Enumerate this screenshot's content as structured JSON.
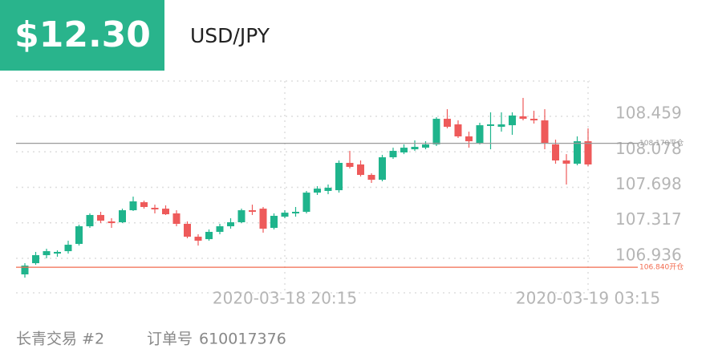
{
  "header": {
    "price": "$12.30",
    "symbol": "USD/JPY"
  },
  "footer": {
    "account": "长青交易 #2",
    "order_label": "订单号",
    "order_number": "610017376"
  },
  "chart_data": {
    "type": "candlestick",
    "categories": [
      null,
      null,
      null,
      null,
      null,
      null,
      null,
      null,
      null,
      null,
      null,
      null,
      null,
      null,
      null,
      null,
      null,
      null,
      null,
      null,
      null,
      null,
      null,
      null,
      "2020-03-18 20:15",
      null,
      null,
      null,
      null,
      null,
      null,
      null,
      null,
      null,
      null,
      null,
      null,
      null,
      null,
      null,
      null,
      null,
      null,
      null,
      null,
      null,
      null,
      null,
      null,
      null,
      null,
      null,
      "2020-03-19 03:15"
    ],
    "open": [
      106.764,
      106.884,
      106.97,
      106.987,
      107.013,
      107.091,
      107.28,
      107.401,
      107.332,
      107.323,
      107.452,
      107.538,
      107.478,
      107.469,
      107.418,
      107.306,
      107.168,
      107.142,
      107.22,
      107.28,
      107.323,
      107.452,
      107.469,
      107.263,
      107.383,
      107.418,
      107.435,
      107.641,
      107.659,
      107.667,
      107.96,
      107.943,
      107.831,
      107.779,
      108.02,
      108.072,
      108.106,
      108.123,
      108.158,
      108.433,
      108.373,
      108.244,
      108.175,
      108.356,
      108.347,
      108.364,
      108.459,
      108.433,
      108.416,
      108.158,
      107.986,
      107.951,
      108.192
    ],
    "high": [
      106.884,
      107.005,
      107.039,
      107.022,
      107.125,
      107.297,
      107.418,
      107.435,
      107.366,
      107.469,
      107.598,
      107.555,
      107.512,
      107.504,
      107.452,
      107.332,
      107.194,
      107.246,
      107.306,
      107.366,
      107.469,
      107.512,
      107.487,
      107.418,
      107.452,
      107.487,
      107.659,
      107.71,
      107.728,
      107.986,
      108.089,
      107.986,
      107.848,
      108.046,
      108.123,
      108.158,
      108.201,
      108.192,
      108.45,
      108.536,
      108.416,
      108.295,
      108.39,
      108.502,
      108.502,
      108.502,
      108.657,
      108.519,
      108.536,
      108.209,
      108.054,
      108.244,
      108.33
    ],
    "low": [
      106.729,
      106.867,
      106.936,
      106.953,
      106.987,
      107.073,
      107.263,
      107.314,
      107.263,
      107.314,
      107.444,
      107.469,
      107.418,
      107.401,
      107.28,
      107.151,
      107.073,
      107.125,
      107.194,
      107.254,
      107.314,
      107.401,
      107.211,
      107.246,
      107.366,
      107.383,
      107.418,
      107.616,
      107.624,
      107.641,
      107.9,
      107.814,
      107.745,
      107.762,
      108.003,
      108.054,
      108.089,
      108.106,
      108.141,
      108.33,
      108.227,
      108.123,
      108.158,
      108.106,
      108.295,
      108.261,
      108.416,
      108.382,
      108.106,
      107.951,
      107.728,
      107.934,
      107.925
    ],
    "close": [
      106.858,
      106.97,
      107.013,
      107.005,
      107.082,
      107.28,
      107.401,
      107.34,
      107.314,
      107.452,
      107.547,
      107.487,
      107.461,
      107.409,
      107.306,
      107.168,
      107.125,
      107.22,
      107.28,
      107.323,
      107.452,
      107.435,
      107.254,
      107.392,
      107.426,
      107.435,
      107.641,
      107.684,
      107.693,
      107.96,
      107.917,
      107.831,
      107.779,
      108.02,
      108.089,
      108.123,
      108.132,
      108.158,
      108.433,
      108.347,
      108.244,
      108.192,
      108.364,
      108.373,
      108.373,
      108.468,
      108.433,
      108.416,
      108.175,
      107.986,
      107.951,
      108.192,
      107.943
    ],
    "up_color": "#1fb48c",
    "down_color": "#ee5a5a",
    "ylim": [
      106.566,
      108.838
    ],
    "yticks": [
      106.936,
      107.317,
      107.698,
      108.078,
      108.459
    ],
    "grid": true,
    "reference_lines": [
      {
        "value": 108.17,
        "label": "108.170平仓",
        "color": "#9a9a9a"
      },
      {
        "value": 106.84,
        "label": "106.840开仓",
        "color": "#f26b4f"
      }
    ]
  }
}
